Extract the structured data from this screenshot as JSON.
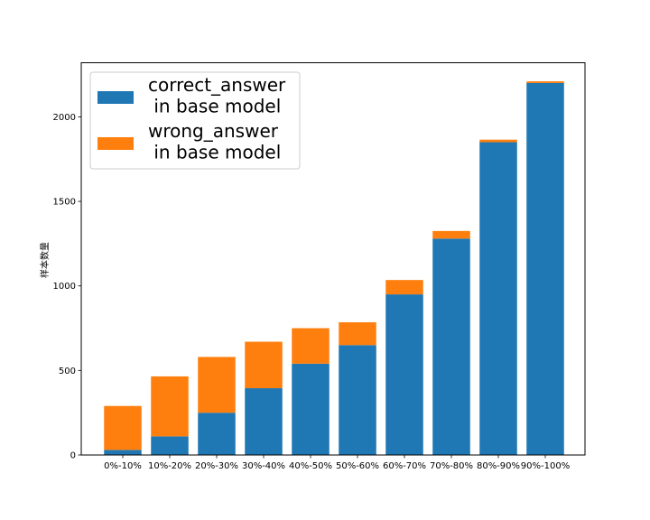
{
  "chart_data": {
    "type": "bar",
    "stacked": true,
    "categories": [
      "0%-10%",
      "10%-20%",
      "20%-30%",
      "30%-40%",
      "40%-50%",
      "50%-60%",
      "60%-70%",
      "70%-80%",
      "80%-90%",
      "90%-100%"
    ],
    "series": [
      {
        "name": "correct_answer\n in base model",
        "color": "#1f77b4",
        "values": [
          30,
          110,
          250,
          395,
          540,
          650,
          950,
          1280,
          1850,
          2200
        ]
      },
      {
        "name": "wrong_answer\n in  base model",
        "color": "#ff7f0e",
        "values": [
          260,
          355,
          330,
          275,
          210,
          135,
          85,
          45,
          15,
          10
        ]
      }
    ],
    "ylabel": "样本数量",
    "xlabel": "",
    "title": "",
    "ylim": [
      0,
      2320
    ],
    "yticks": [
      0,
      500,
      1000,
      1500,
      2000
    ],
    "grid": false,
    "legend_position": "top-left"
  }
}
